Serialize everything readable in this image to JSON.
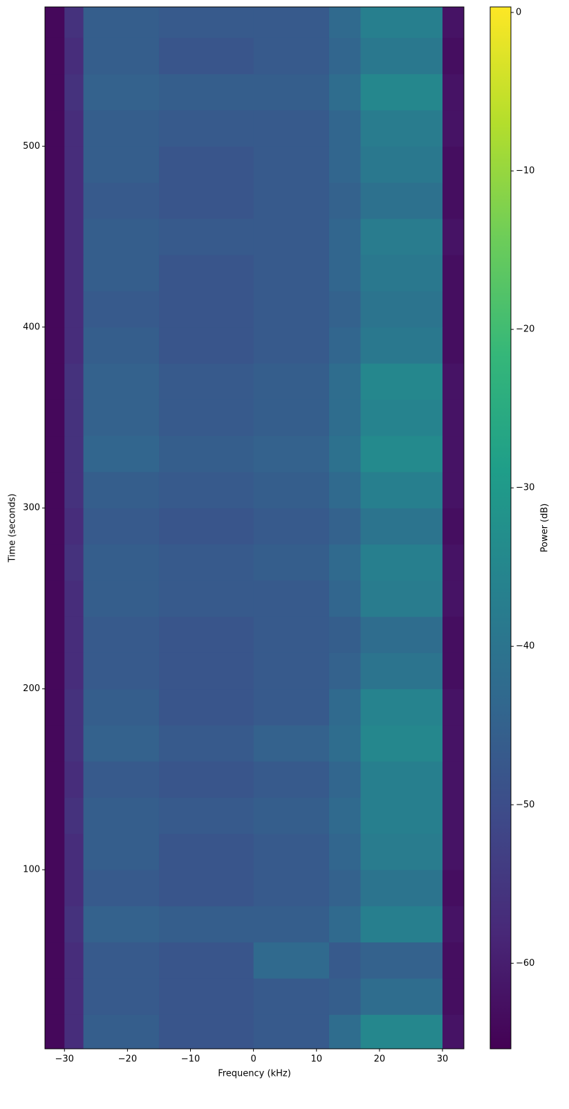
{
  "chart_data": {
    "type": "heatmap",
    "xlabel": "Frequency (kHz)",
    "ylabel": "Time (seconds)",
    "colorbar_label": "Power (dB)",
    "colormap": "viridis",
    "xlim": [
      -33.1,
      33.4
    ],
    "ylim": [
      1,
      577
    ],
    "clim": [
      -65.4,
      0.35
    ],
    "xticks": [
      {
        "value": -30,
        "label": "−30"
      },
      {
        "value": -20,
        "label": "−20"
      },
      {
        "value": -10,
        "label": "−10"
      },
      0,
      10,
      20,
      30
    ],
    "yticks": [
      100,
      200,
      300,
      400,
      500
    ],
    "cticks": [
      0,
      {
        "value": -10,
        "label": "−10"
      },
      {
        "value": -20,
        "label": "−20"
      },
      {
        "value": -30,
        "label": "−30"
      },
      {
        "value": -40,
        "label": "−40"
      },
      {
        "value": -50,
        "label": "−50"
      },
      {
        "value": -60,
        "label": "−60"
      }
    ],
    "x_edges": [
      -33.1,
      -30,
      -27,
      -15,
      0,
      12,
      17,
      30,
      33.4
    ],
    "y_edges": [
      1,
      20,
      40,
      60,
      80,
      100,
      120,
      140,
      160,
      180,
      200,
      220,
      240,
      260,
      280,
      300,
      320,
      340,
      360,
      380,
      400,
      420,
      440,
      460,
      480,
      500,
      520,
      540,
      560,
      577
    ],
    "z": [
      [
        -64,
        -57,
        -46,
        -48,
        -47,
        -42,
        -35,
        -62
      ],
      [
        -64,
        -57,
        -47,
        -48,
        -47,
        -46,
        -42,
        -63
      ],
      [
        -64,
        -57,
        -47,
        -48,
        -43,
        -47,
        -45,
        -63
      ],
      [
        -64,
        -56,
        -45,
        -46,
        -46,
        -43,
        -37,
        -62
      ],
      [
        -64,
        -57,
        -47,
        -48,
        -47,
        -45,
        -40,
        -63
      ],
      [
        -64,
        -57,
        -46,
        -48,
        -47,
        -44,
        -38,
        -62
      ],
      [
        -64,
        -56,
        -46,
        -47,
        -46,
        -43,
        -37,
        -62
      ],
      [
        -64,
        -57,
        -47,
        -48,
        -47,
        -44,
        -37,
        -62
      ],
      [
        -64,
        -56,
        -45,
        -47,
        -45,
        -42,
        -35,
        -62
      ],
      [
        -64,
        -56,
        -46,
        -48,
        -47,
        -43,
        -36,
        -62
      ],
      [
        -64,
        -57,
        -47,
        -48,
        -47,
        -45,
        -40,
        -63
      ],
      [
        -64,
        -57,
        -47,
        -48,
        -47,
        -46,
        -42,
        -63
      ],
      [
        -64,
        -57,
        -46,
        -47,
        -47,
        -44,
        -38,
        -62
      ],
      [
        -64,
        -56,
        -46,
        -47,
        -46,
        -43,
        -37,
        -62
      ],
      [
        -64,
        -57,
        -47,
        -48,
        -47,
        -45,
        -40,
        -63
      ],
      [
        -64,
        -56,
        -46,
        -47,
        -46,
        -43,
        -37,
        -62
      ],
      [
        -64,
        -56,
        -44,
        -46,
        -45,
        -41,
        -34,
        -62
      ],
      [
        -64,
        -56,
        -45,
        -47,
        -46,
        -42,
        -36,
        -62
      ],
      [
        -64,
        -56,
        -45,
        -47,
        -46,
        -42,
        -35,
        -62
      ],
      [
        -64,
        -57,
        -46,
        -48,
        -47,
        -44,
        -39,
        -63
      ],
      [
        -64,
        -57,
        -47,
        -48,
        -47,
        -45,
        -40,
        -63
      ],
      [
        -64,
        -57,
        -46,
        -48,
        -47,
        -44,
        -39,
        -63
      ],
      [
        -64,
        -57,
        -46,
        -47,
        -47,
        -44,
        -38,
        -62
      ],
      [
        -64,
        -57,
        -47,
        -48,
        -47,
        -45,
        -41,
        -63
      ],
      [
        -64,
        -57,
        -46,
        -48,
        -47,
        -44,
        -39,
        -63
      ],
      [
        -64,
        -57,
        -46,
        -47,
        -47,
        -44,
        -38,
        -62
      ],
      [
        -64,
        -56,
        -45,
        -46,
        -46,
        -42,
        -35,
        -62
      ],
      [
        -64,
        -57,
        -46,
        -48,
        -47,
        -44,
        -39,
        -63
      ],
      [
        -64,
        -56,
        -46,
        -47,
        -47,
        -43,
        -37,
        -62
      ]
    ]
  }
}
